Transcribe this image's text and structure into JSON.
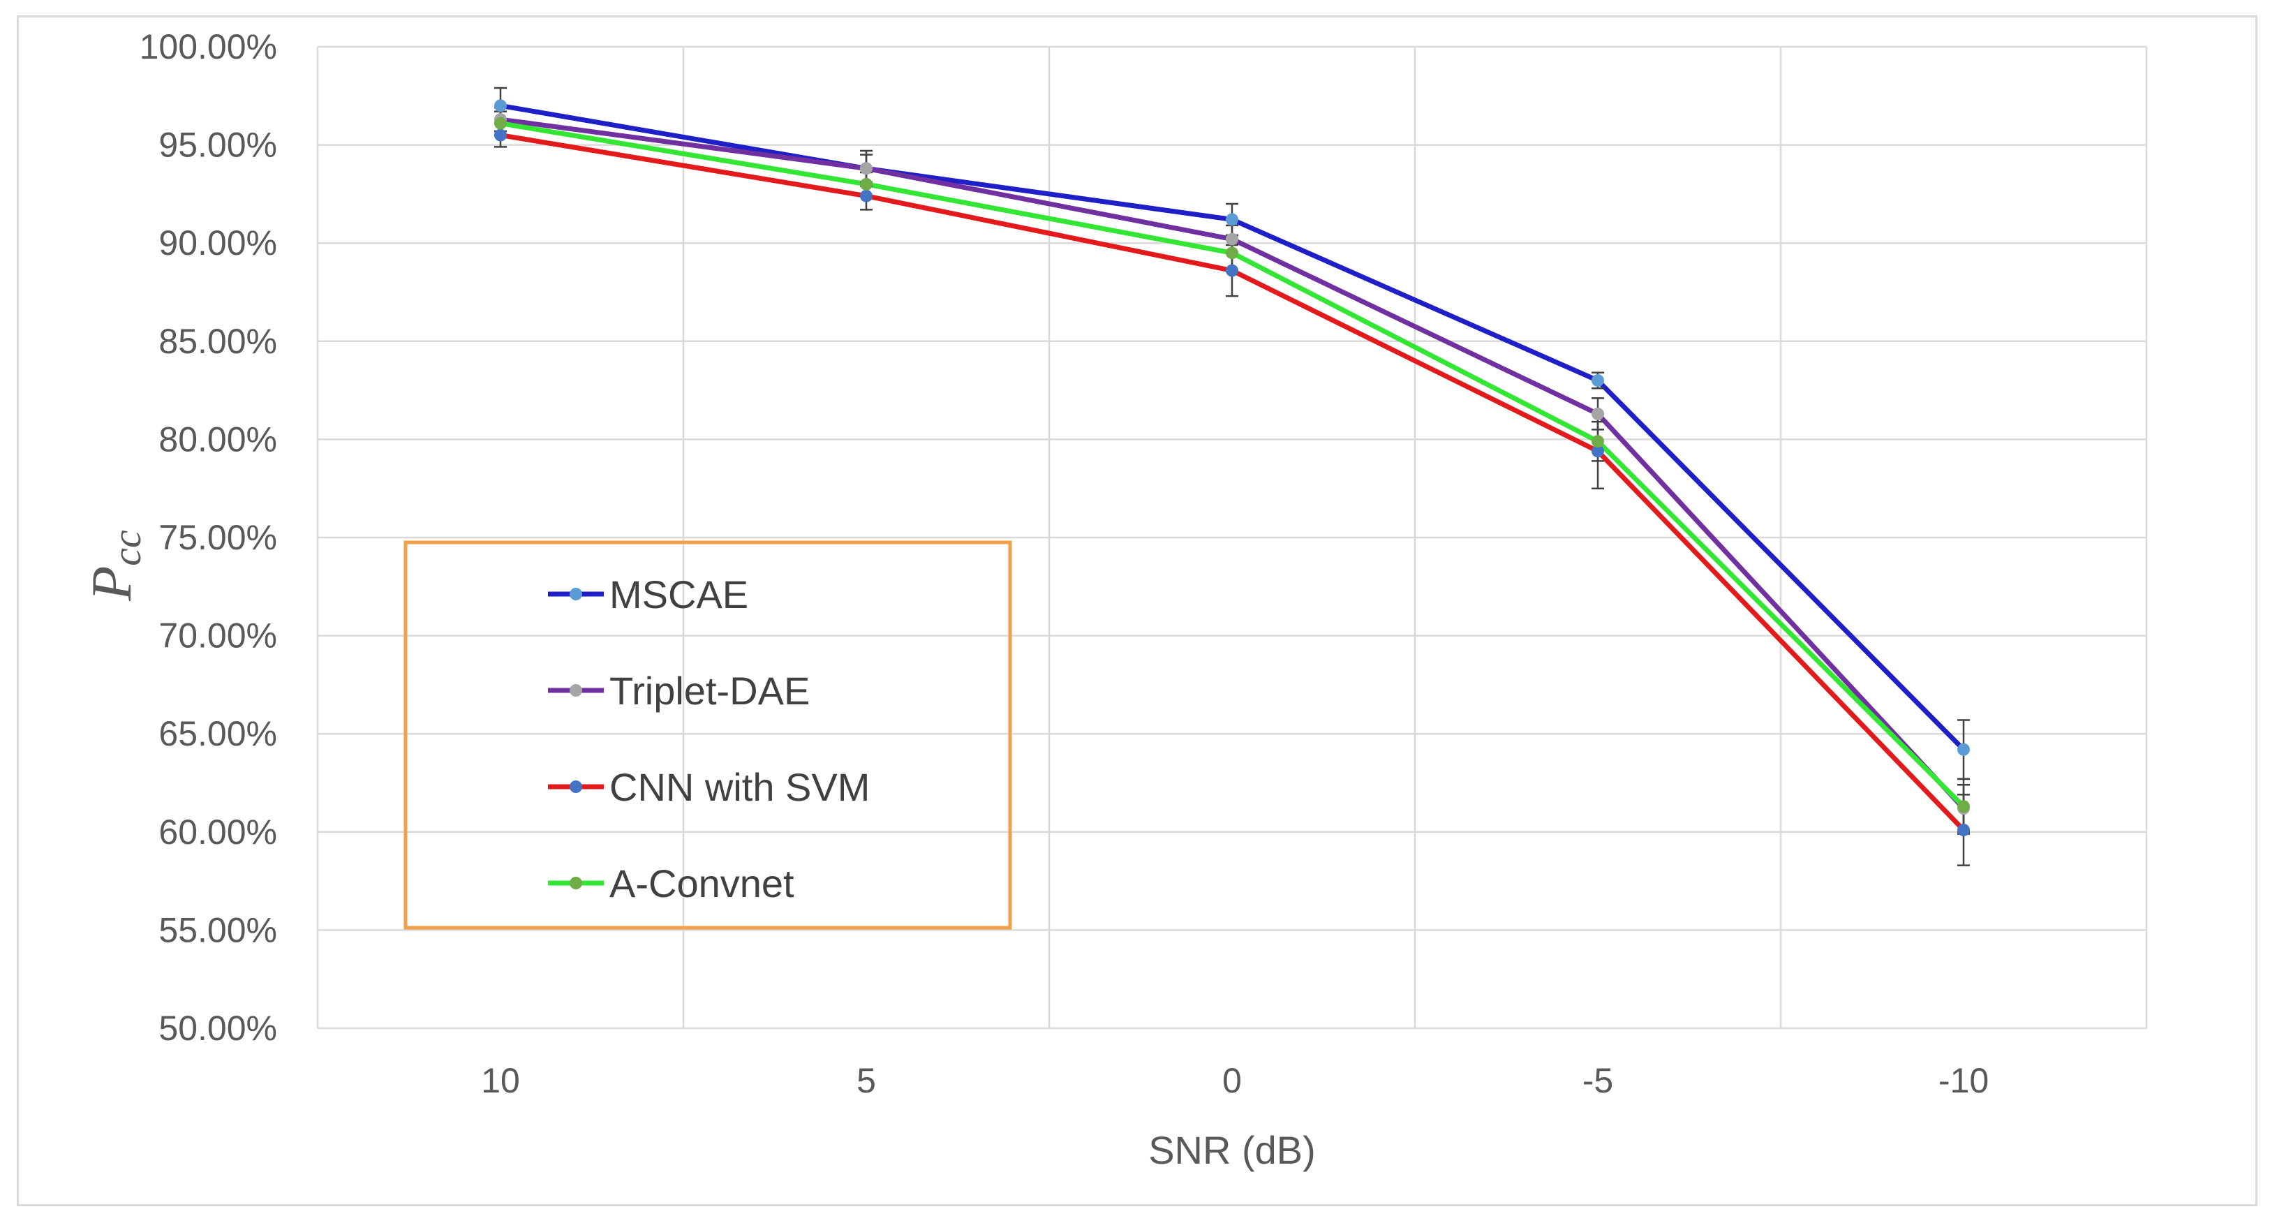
{
  "chart_data": {
    "type": "line",
    "title": "",
    "xlabel": "SNR (dB)",
    "ylabel": {
      "main": "P",
      "sub": "cc"
    },
    "categories": [
      "10",
      "5",
      "0",
      "-5",
      "-10"
    ],
    "ylim": [
      50,
      100
    ],
    "y_tick_values": [
      50,
      55,
      60,
      65,
      70,
      75,
      80,
      85,
      90,
      95,
      100
    ],
    "y_tick_labels": [
      "50.00%",
      "55.00%",
      "60.00%",
      "65.00%",
      "70.00%",
      "75.00%",
      "80.00%",
      "85.00%",
      "90.00%",
      "95.00%",
      "100.00%"
    ],
    "grid": true,
    "legend_position": "left-center",
    "series": [
      {
        "name": "MSCAE",
        "color": "#1f1fc8",
        "marker_color": "#5b9bd5",
        "values": [
          97.0,
          93.8,
          91.2,
          83.0,
          64.2
        ],
        "errors": [
          0.9,
          0.9,
          0.8,
          0.4,
          1.5
        ]
      },
      {
        "name": "Triplet-DAE",
        "color": "#7030a0",
        "marker_color": "#a5a5a5",
        "values": [
          96.3,
          93.8,
          90.2,
          81.3,
          61.2
        ],
        "errors": [
          0.6,
          0.7,
          0.7,
          0.8,
          1.2
        ]
      },
      {
        "name": "CNN with SVM",
        "color": "#e31a1c",
        "marker_color": "#4472c4",
        "values": [
          95.5,
          92.4,
          88.6,
          79.4,
          60.1
        ],
        "errors": [
          0.6,
          0.7,
          1.3,
          1.9,
          1.8
        ]
      },
      {
        "name": "A-Convnet",
        "color": "#33e633",
        "marker_color": "#70ad47",
        "values": [
          96.1,
          93.0,
          89.5,
          79.9,
          61.3
        ],
        "errors": [
          0.6,
          0.6,
          0.9,
          1.0,
          1.4
        ]
      }
    ]
  }
}
